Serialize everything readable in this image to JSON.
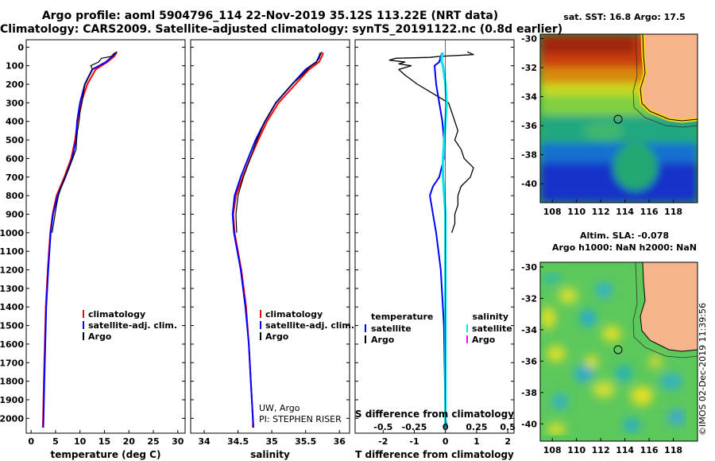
{
  "titles": {
    "line1": "Argo profile: aoml 5904796_114 22-Nov-2019 35.12S 113.22E (NRT data)",
    "line2": "Climatology: CARS2009. Satellite-adjusted climatology: synTS_20191122.nc (0.8d earlier)"
  },
  "credit": {
    "line1": "UW, Argo",
    "line2": "PI: STEPHEN RISER"
  },
  "stamp": "©IMOS 02-Dec-2019 11:39:56",
  "map_titles": {
    "sst": "sat. SST: 16.8 Argo: 17.5",
    "sla1": "Altim. SLA: -0.078",
    "sla2": "Argo h1000: NaN h2000: NaN"
  },
  "colors": {
    "climatology": "#ff0000",
    "satellite": "#0000ff",
    "argo": "#000000",
    "satellite_salinity": "#00e5ee",
    "argo_salinity": "#ff00ff",
    "land": "#f5b48c"
  },
  "depth_ticks": [
    "0",
    "100",
    "200",
    "300",
    "400",
    "500",
    "600",
    "700",
    "800",
    "900",
    "1000",
    "1100",
    "1200",
    "1300",
    "1400",
    "1500",
    "1600",
    "1700",
    "1800",
    "1900",
    "2000"
  ],
  "chart_data": [
    {
      "type": "line",
      "xlabel": "temperature (deg C)",
      "ylabel": "",
      "xlim": [
        -1,
        31.5
      ],
      "ylim": [
        2080,
        -40
      ],
      "xticks": [
        "0",
        "5",
        "10",
        "15",
        "20",
        "25",
        "30"
      ],
      "legend": [
        "climatology",
        "satellite-adj. clim.",
        "Argo"
      ],
      "series": [
        {
          "name": "climatology",
          "depth": [
            30,
            50,
            80,
            120,
            200,
            300,
            400,
            500,
            600,
            700,
            800,
            900,
            1000,
            1200,
            1400,
            1600,
            1800,
            2000,
            2050
          ],
          "values": [
            17.5,
            17,
            15.6,
            13.2,
            11.5,
            10.2,
            9.5,
            9.0,
            8.2,
            6.8,
            5.2,
            4.4,
            3.9,
            3.4,
            3.0,
            2.8,
            2.6,
            2.45,
            2.4
          ]
        },
        {
          "name": "satellite-adj. clim.",
          "depth": [
            30,
            50,
            80,
            120,
            200,
            300,
            400,
            500,
            600,
            700,
            800,
            900,
            1000,
            1200,
            1400,
            1600,
            1800,
            2000,
            2050
          ],
          "values": [
            17.3,
            16.6,
            15.3,
            12.5,
            11.0,
            10.0,
            9.4,
            9.2,
            8.4,
            7.0,
            5.4,
            4.5,
            4.0,
            3.5,
            3.1,
            2.9,
            2.7,
            2.55,
            2.5
          ]
        },
        {
          "name": "Argo",
          "depth": [
            25,
            35,
            50,
            60,
            80,
            100,
            120,
            150,
            200,
            250,
            300,
            350,
            400,
            450,
            500,
            550,
            600,
            650,
            700,
            750,
            800,
            850,
            900,
            950,
            1000
          ],
          "values": [
            17.6,
            16.9,
            16.4,
            14.4,
            13.8,
            12.2,
            12.6,
            12.0,
            11.0,
            10.7,
            10.4,
            10.0,
            9.8,
            9.5,
            9.3,
            9.2,
            8.5,
            7.8,
            7.0,
            6.2,
            5.6,
            5.2,
            4.9,
            4.6,
            4.3
          ]
        }
      ]
    },
    {
      "type": "line",
      "xlabel": "salinity",
      "ylabel": "",
      "xlim": [
        33.8,
        36.15
      ],
      "ylim": [
        2080,
        -40
      ],
      "xticks": [
        "34",
        "34.5",
        "35",
        "35.5",
        "36"
      ],
      "legend": [
        "climatology",
        "satellite-adj. clim.",
        "Argo"
      ],
      "series": [
        {
          "name": "climatology",
          "depth": [
            30,
            50,
            80,
            120,
            200,
            300,
            400,
            500,
            600,
            700,
            800,
            900,
            1000,
            1200,
            1400,
            1600,
            1800,
            2000,
            2050
          ],
          "values": [
            35.76,
            35.74,
            35.7,
            35.55,
            35.35,
            35.1,
            34.93,
            34.8,
            34.68,
            34.57,
            34.47,
            34.43,
            34.45,
            34.55,
            34.62,
            34.66,
            34.69,
            34.72,
            34.72
          ]
        },
        {
          "name": "satellite-adj. clim.",
          "depth": [
            30,
            50,
            80,
            120,
            200,
            300,
            400,
            500,
            600,
            700,
            800,
            900,
            1000,
            1200,
            1400,
            1600,
            1800,
            2000,
            2050
          ],
          "values": [
            35.72,
            35.7,
            35.66,
            35.5,
            35.3,
            35.06,
            34.9,
            34.76,
            34.65,
            34.54,
            34.45,
            34.42,
            34.44,
            34.54,
            34.61,
            34.66,
            34.69,
            34.72,
            34.73
          ]
        },
        {
          "name": "Argo",
          "depth": [
            25,
            40,
            60,
            80,
            100,
            150,
            200,
            300,
            400,
            500,
            600,
            700,
            800,
            900,
            1000
          ],
          "values": [
            35.74,
            35.72,
            35.7,
            35.66,
            35.58,
            35.45,
            35.3,
            35.06,
            34.9,
            34.78,
            34.68,
            34.58,
            34.5,
            34.47,
            34.48
          ]
        }
      ]
    },
    {
      "type": "line",
      "xlabel": "T difference from climatology",
      "ylabel": "",
      "xlim": [
        -2.9,
        2.2
      ],
      "ylim": [
        2080,
        -40
      ],
      "xticks": [
        "-2",
        "-1",
        "0",
        "1",
        "2"
      ],
      "xlabel_top": "S difference from climatology",
      "xticks_top": [
        "-0.5",
        "-0.25",
        "0",
        "0.25",
        "0.5"
      ],
      "legend_temperature_heading": "temperature",
      "legend_salinity_heading": "salinity",
      "legend_temperature": [
        "satellite",
        "Argo"
      ],
      "legend_salinity": [
        "satellite",
        "Argo"
      ],
      "series": [
        {
          "name": "satellite",
          "quantity": "temperature",
          "depth": [
            30,
            50,
            80,
            100,
            200,
            300,
            400,
            500,
            600,
            700,
            750,
            800,
            850,
            900,
            1000,
            1200,
            1500,
            2000,
            2050
          ],
          "values": [
            -0.1,
            -0.15,
            -0.2,
            -0.35,
            -0.3,
            -0.2,
            -0.1,
            -0.05,
            -0.05,
            -0.2,
            -0.4,
            -0.5,
            -0.45,
            -0.4,
            -0.3,
            -0.15,
            -0.05,
            0.0,
            0.05
          ]
        },
        {
          "name": "Argo",
          "quantity": "temperature",
          "depth": [
            25,
            40,
            50,
            55,
            60,
            70,
            80,
            90,
            100,
            120,
            150,
            200,
            250,
            300,
            350,
            400,
            450,
            500,
            550,
            600,
            650,
            700,
            750,
            800,
            850,
            900,
            950,
            1000
          ],
          "values": [
            0.7,
            0.9,
            -0.2,
            -0.5,
            -1.6,
            -1.8,
            -1.3,
            -1.5,
            -1.1,
            -1.5,
            -1.3,
            -0.9,
            -0.4,
            0.1,
            0.2,
            0.3,
            0.4,
            0.3,
            0.5,
            0.6,
            0.9,
            0.8,
            0.5,
            0.4,
            0.4,
            0.3,
            0.3,
            0.2
          ]
        },
        {
          "name": "satellite",
          "quantity": "salinity",
          "depth": [
            30,
            50,
            80,
            100,
            150,
            200,
            300,
            400,
            500,
            600,
            700,
            800,
            900,
            1000,
            1200,
            1500,
            2000,
            2050
          ],
          "values": [
            -0.02,
            -0.03,
            -0.03,
            -0.02,
            -0.01,
            0.0,
            0.01,
            0.0,
            -0.01,
            -0.02,
            -0.02,
            -0.01,
            0.0,
            0.0,
            0.0,
            0.0,
            0.0,
            0.0
          ]
        }
      ]
    }
  ],
  "maps": [
    {
      "name": "sst",
      "lon_ticks": [
        "108",
        "110",
        "112",
        "114",
        "116",
        "118"
      ],
      "lat_ticks": [
        "-30",
        "-32",
        "-34",
        "-36",
        "-38",
        "-40"
      ]
    },
    {
      "name": "sla",
      "lon_ticks": [
        "108",
        "110",
        "112",
        "114",
        "116",
        "118"
      ],
      "lat_ticks": [
        "-30",
        "-32",
        "-34",
        "-36",
        "-38",
        "-40"
      ]
    }
  ]
}
